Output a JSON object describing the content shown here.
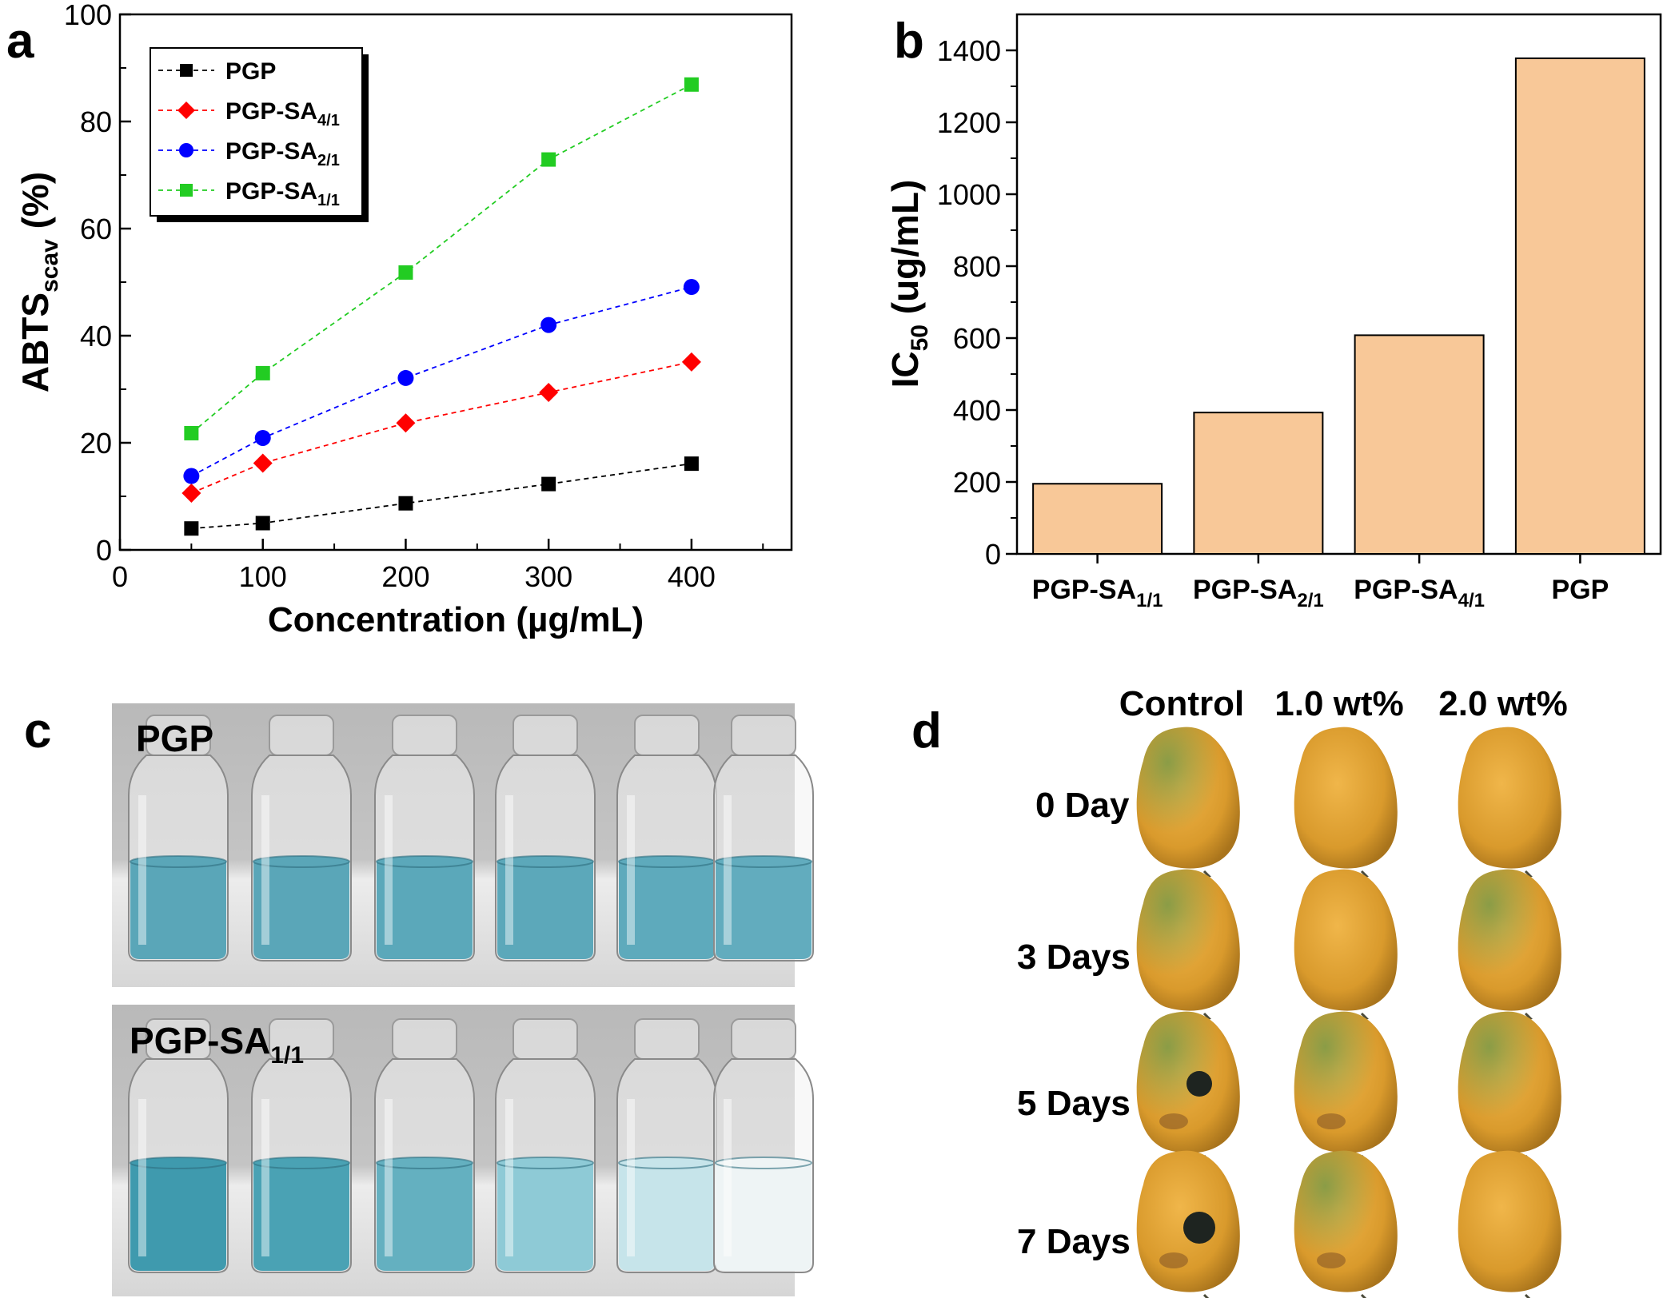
{
  "panel_labels": {
    "a": "a",
    "b": "b",
    "c": "c",
    "d": "d"
  },
  "chart_data": [
    {
      "panel": "a",
      "type": "line",
      "title": "",
      "xlabel": "Concentration (µg/mL)",
      "ylabel_main": "ABTS",
      "ylabel_sub": "scav",
      "ylabel_tail": " (%)",
      "x": [
        50,
        100,
        200,
        300,
        400
      ],
      "xlim": [
        0,
        470
      ],
      "ylim": [
        0,
        100
      ],
      "xticks": [
        0,
        100,
        200,
        300,
        400
      ],
      "yticks": [
        0,
        20,
        40,
        60,
        80,
        100
      ],
      "legend_position": "top-left",
      "series": [
        {
          "name": "PGP",
          "name_base": "PGP",
          "name_sub": "",
          "color": "#000000",
          "marker": "square",
          "values": [
            4.0,
            5.0,
            8.7,
            12.3,
            16.1
          ]
        },
        {
          "name": "PGP-SA4/1",
          "name_base": "PGP-SA",
          "name_sub": "4/1",
          "color": "#ff0000",
          "marker": "diamond",
          "values": [
            10.6,
            16.2,
            23.7,
            29.4,
            35.1
          ]
        },
        {
          "name": "PGP-SA2/1",
          "name_base": "PGP-SA",
          "name_sub": "2/1",
          "color": "#0000ff",
          "marker": "circle",
          "values": [
            13.8,
            20.9,
            32.1,
            42.0,
            49.1
          ]
        },
        {
          "name": "PGP-SA1/1",
          "name_base": "PGP-SA",
          "name_sub": "1/1",
          "color": "#22cc22",
          "marker": "square",
          "values": [
            21.8,
            33.0,
            51.8,
            72.9,
            86.9
          ]
        }
      ]
    },
    {
      "panel": "b",
      "type": "bar",
      "title": "",
      "xlabel": "",
      "ylabel_main": "IC",
      "ylabel_sub": "50",
      "ylabel_tail": " (ug/mL)",
      "categories": [
        {
          "base": "PGP-SA",
          "sub": "1/1"
        },
        {
          "base": "PGP-SA",
          "sub": "2/1"
        },
        {
          "base": "PGP-SA",
          "sub": "4/1"
        },
        {
          "base": "PGP",
          "sub": ""
        }
      ],
      "values": [
        195,
        393,
        608,
        1378
      ],
      "ylim": [
        0,
        1500
      ],
      "yticks": [
        0,
        200,
        400,
        600,
        800,
        1000,
        1200,
        1400
      ],
      "bar_color": "#f8c898"
    }
  ],
  "photo_c": {
    "top_label": "PGP",
    "bottom_label_base": "PGP-SA",
    "bottom_label_sub": "1/1",
    "top_vials": [
      "#5aa6b8",
      "#5aa6b8",
      "#5ba8ba",
      "#5ca8ba",
      "#5eaabc",
      "#62acbe"
    ],
    "bottom_vials": [
      "#3f9aae",
      "#4aa2b4",
      "#64b0c0",
      "#8ecad6",
      "#c6e4ea",
      "#eef4f5"
    ]
  },
  "photo_d": {
    "columns": [
      "Control",
      "1.0 wt%",
      "2.0 wt%"
    ],
    "rows": [
      "0 Day",
      "3 Days",
      "5 Days",
      "7 Days"
    ]
  }
}
